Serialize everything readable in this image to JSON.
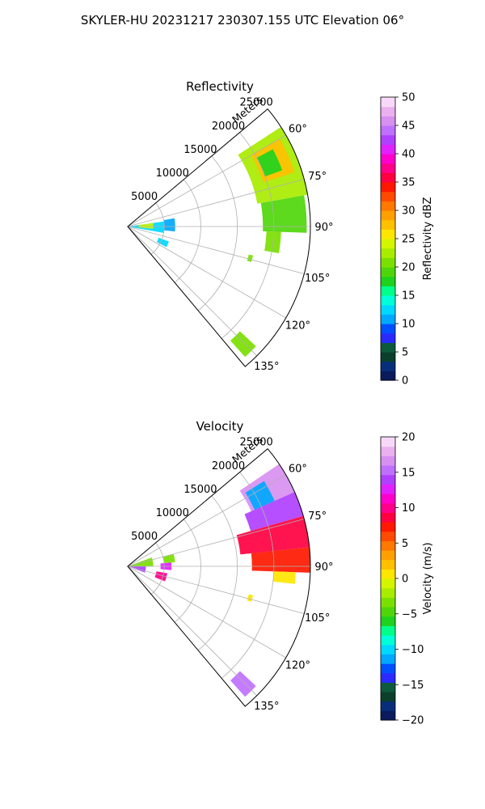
{
  "figure": {
    "suptitle": "SKYLER-HU  20231217  230307.155 UTC Elevation 06°"
  },
  "chart_data": [
    {
      "type": "heatmap",
      "projection": "polar-sector",
      "title": "Reflectivity",
      "radial_label": "Meters",
      "radial_ticks": [
        5000,
        10000,
        15000,
        20000,
        25000
      ],
      "radial_tick_labels": [
        "5000",
        "10000",
        "15000",
        "20000",
        "25000"
      ],
      "radial_range": [
        0,
        25000
      ],
      "azimuth_range_deg": [
        50,
        140
      ],
      "azimuth_ticks": [
        60,
        75,
        90,
        105,
        120,
        135
      ],
      "azimuth_tick_labels": [
        "60°",
        "75°",
        "90°",
        "105°",
        "120°",
        "135°"
      ],
      "grid": true,
      "colorbar": {
        "label": "Reflectivity dBZ",
        "range": [
          0,
          50
        ],
        "ticks": [
          0,
          5,
          10,
          15,
          20,
          25,
          30,
          35,
          40,
          45,
          50
        ],
        "tick_labels": [
          "0",
          "5",
          "10",
          "15",
          "20",
          "25",
          "30",
          "35",
          "40",
          "45",
          "50"
        ],
        "colors": [
          "#0a1a5c",
          "#062e7a",
          "#0b3f2c",
          "#0d5a3c",
          "#2a2aff",
          "#0050ff",
          "#00a8ff",
          "#00d8ff",
          "#00ffd8",
          "#00ff8a",
          "#1ed21e",
          "#4fd60b",
          "#7ae000",
          "#a8ec00",
          "#d4f500",
          "#ffe600",
          "#ffc000",
          "#ffa000",
          "#ff7800",
          "#ff4a00",
          "#ff1800",
          "#ff0040",
          "#ff008a",
          "#ff00cc",
          "#e020ff",
          "#b040ff",
          "#c070ff",
          "#d890f0",
          "#eab0f0",
          "#f8d8f8"
        ]
      },
      "regions": [
        {
          "az": [
            57,
            80
          ],
          "r": [
            18000,
            25000
          ],
          "value": 23
        },
        {
          "az": [
            60,
            72
          ],
          "r": [
            19500,
            24000
          ],
          "value": 27
        },
        {
          "az": [
            80,
            92
          ],
          "r": [
            18500,
            24500
          ],
          "value": 19
        },
        {
          "az": [
            62,
            70
          ],
          "r": [
            20000,
            22500
          ],
          "value": 18
        },
        {
          "az": [
            92,
            100
          ],
          "r": [
            19000,
            21000
          ],
          "value": 20
        },
        {
          "az": [
            82,
            100
          ],
          "r": [
            0,
            5000
          ],
          "value": 13
        },
        {
          "az": [
            80,
            96
          ],
          "r": [
            5000,
            6500
          ],
          "value": 11
        },
        {
          "az": [
            82,
            95
          ],
          "r": [
            1500,
            3500
          ],
          "value": 24
        },
        {
          "az": [
            110,
            118
          ],
          "r": [
            4500,
            6000
          ],
          "value": 13
        },
        {
          "az": [
            133,
            138
          ],
          "r": [
            21000,
            24000
          ],
          "value": 20
        },
        {
          "az": [
            103,
            106
          ],
          "r": [
            17000,
            17600
          ],
          "value": 20
        }
      ]
    },
    {
      "type": "heatmap",
      "projection": "polar-sector",
      "title": "Velocity",
      "radial_label": "Meters",
      "radial_ticks": [
        5000,
        10000,
        15000,
        20000,
        25000
      ],
      "radial_tick_labels": [
        "5000",
        "10000",
        "15000",
        "20000",
        "25000"
      ],
      "radial_range": [
        0,
        25000
      ],
      "azimuth_range_deg": [
        50,
        140
      ],
      "azimuth_ticks": [
        60,
        75,
        90,
        105,
        120,
        135
      ],
      "azimuth_tick_labels": [
        "60°",
        "75°",
        "90°",
        "105°",
        "120°",
        "135°"
      ],
      "grid": true,
      "colorbar": {
        "label": "Velocity (m/s)",
        "range": [
          -20,
          20
        ],
        "ticks": [
          -20,
          -15,
          -10,
          -5,
          0,
          5,
          10,
          15,
          20
        ],
        "tick_labels": [
          "−20",
          "−15",
          "−10",
          "−5",
          "0",
          "5",
          "10",
          "15",
          "20"
        ],
        "colors": [
          "#0a1a5c",
          "#062e7a",
          "#0b3f2c",
          "#0d5a3c",
          "#2a2aff",
          "#0050ff",
          "#00a8ff",
          "#00d8ff",
          "#00ffd8",
          "#00ff8a",
          "#1ed21e",
          "#4fd60b",
          "#7ae000",
          "#a8ec00",
          "#d4f500",
          "#ffe600",
          "#ffc000",
          "#ffa000",
          "#ff7800",
          "#ff4a00",
          "#ff1800",
          "#ff0040",
          "#ff008a",
          "#ff00cc",
          "#e020ff",
          "#b040ff",
          "#c070ff",
          "#d890f0",
          "#eab0f0",
          "#f8d8f8"
        ]
      },
      "regions": [
        {
          "az": [
            56,
            66
          ],
          "r": [
            18500,
            25000
          ],
          "value": 17
        },
        {
          "az": [
            66,
            74
          ],
          "r": [
            17500,
            25000
          ],
          "value": 14
        },
        {
          "az": [
            74,
            84
          ],
          "r": [
            15500,
            25000
          ],
          "value": 9
        },
        {
          "az": [
            84,
            92
          ],
          "r": [
            17000,
            25000
          ],
          "value": 7
        },
        {
          "az": [
            92,
            96
          ],
          "r": [
            20000,
            23000
          ],
          "value": 1
        },
        {
          "az": [
            58,
            66
          ],
          "r": [
            19000,
            22000
          ],
          "value": -12
        },
        {
          "az": [
            70,
            90
          ],
          "r": [
            0,
            3500
          ],
          "value": -4
        },
        {
          "az": [
            90,
            110
          ],
          "r": [
            0,
            2500
          ],
          "value": 14
        },
        {
          "az": [
            85,
            95
          ],
          "r": [
            4500,
            6000
          ],
          "value": 13
        },
        {
          "az": [
            75,
            85
          ],
          "r": [
            5000,
            6500
          ],
          "value": -3
        },
        {
          "az": [
            100,
            112
          ],
          "r": [
            4000,
            5500
          ],
          "value": 10
        },
        {
          "az": [
            133,
            138
          ],
          "r": [
            21000,
            24000
          ],
          "value": 15
        },
        {
          "az": [
            103,
            106
          ],
          "r": [
            17000,
            17600
          ],
          "value": 0
        }
      ]
    }
  ]
}
